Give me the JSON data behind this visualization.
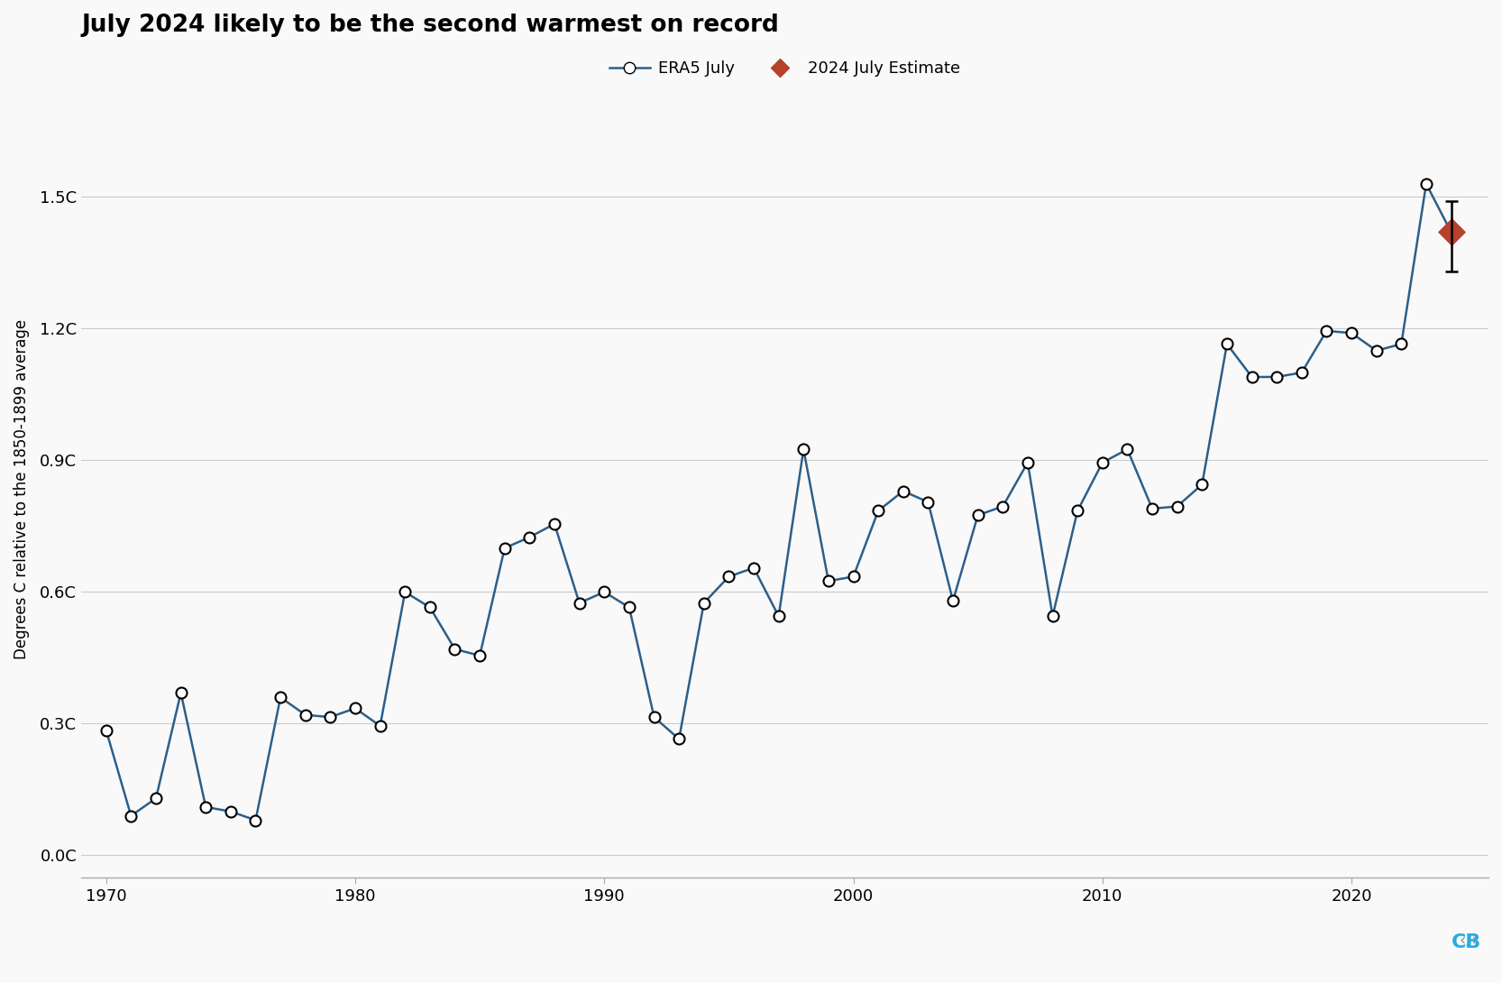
{
  "title": "July 2024 likely to be the second warmest on record",
  "ylabel": "Degrees C relative to the 1850-1899 average",
  "line_color": "#2c5f8a",
  "marker_facecolor": "white",
  "marker_edgecolor": "black",
  "estimate_color": "#b5422a",
  "background_color": "#f9f9f9",
  "years": [
    1970,
    1971,
    1972,
    1973,
    1974,
    1975,
    1976,
    1977,
    1978,
    1979,
    1980,
    1981,
    1982,
    1983,
    1984,
    1985,
    1986,
    1987,
    1988,
    1989,
    1990,
    1991,
    1992,
    1993,
    1994,
    1995,
    1996,
    1997,
    1998,
    1999,
    2000,
    2001,
    2002,
    2003,
    2004,
    2005,
    2006,
    2007,
    2008,
    2009,
    2010,
    2011,
    2012,
    2013,
    2014,
    2015,
    2016,
    2017,
    2018,
    2019,
    2020,
    2021,
    2022,
    2023
  ],
  "values": [
    0.285,
    0.09,
    0.13,
    0.37,
    0.11,
    0.1,
    0.08,
    0.36,
    0.32,
    0.315,
    0.335,
    0.295,
    0.6,
    0.565,
    0.47,
    0.455,
    0.7,
    0.725,
    0.755,
    0.575,
    0.6,
    0.565,
    0.315,
    0.265,
    0.575,
    0.635,
    0.655,
    0.545,
    0.925,
    0.625,
    0.635,
    0.785,
    0.83,
    0.805,
    0.58,
    0.775,
    0.795,
    0.895,
    0.545,
    0.785,
    0.895,
    0.925,
    0.79,
    0.795,
    0.845,
    1.165,
    1.09,
    1.09,
    1.1,
    1.195,
    1.19,
    1.15,
    1.165,
    1.53
  ],
  "estimate_year": 2024,
  "estimate_value": 1.42,
  "estimate_error_lo": 0.09,
  "estimate_error_hi": 0.07,
  "ylim": [
    -0.05,
    1.72
  ],
  "yticks": [
    0.0,
    0.3,
    0.6,
    0.9,
    1.2,
    1.5
  ],
  "ytick_labels": [
    "0.0C",
    "0.3C",
    "0.6C",
    "0.9C",
    "1.2C",
    "1.5C"
  ],
  "xlim": [
    1969.0,
    2025.5
  ],
  "xticks": [
    1970,
    1980,
    1990,
    2000,
    2010,
    2020
  ],
  "title_fontsize": 19,
  "tick_fontsize": 13,
  "ylabel_fontsize": 12,
  "legend_fontsize": 13,
  "marker_size": 75,
  "linewidth": 1.8
}
